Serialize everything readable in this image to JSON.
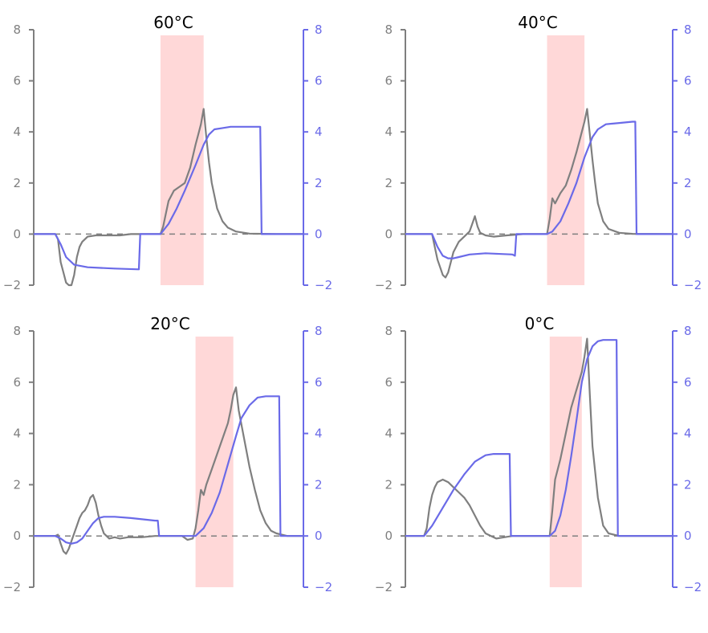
{
  "chart_data": [
    {
      "type": "line",
      "title": "60°C",
      "ylim": [
        -2,
        8
      ],
      "yticks": [
        -2,
        0,
        2,
        4,
        6,
        8
      ],
      "highlight": [
        0.47,
        0.63
      ],
      "colors": {
        "left": "#7f7f7f",
        "right": "#6a6ae8",
        "highlight": "#ffd8d8",
        "zero": "#7f7f7f"
      },
      "series": [
        {
          "axis": "left",
          "x": [
            0.0,
            0.08,
            0.09,
            0.1,
            0.11,
            0.12,
            0.13,
            0.14,
            0.15,
            0.16,
            0.17,
            0.18,
            0.2,
            0.23,
            0.27,
            0.32,
            0.36,
            0.38,
            0.47,
            0.48,
            0.49,
            0.5,
            0.52,
            0.54,
            0.56,
            0.58,
            0.6,
            0.61,
            0.62,
            0.63,
            0.64,
            0.65,
            0.66,
            0.68,
            0.7,
            0.72,
            0.75,
            0.8,
            0.9,
            1.0
          ],
          "values": [
            0,
            0,
            -0.2,
            -1.1,
            -1.5,
            -1.9,
            -2.3,
            -2.1,
            -1.6,
            -0.9,
            -0.5,
            -0.3,
            -0.1,
            -0.05,
            -0.05,
            -0.05,
            0,
            0,
            0,
            0.3,
            0.8,
            1.3,
            1.7,
            1.85,
            2.0,
            2.6,
            3.5,
            3.9,
            4.3,
            4.9,
            3.8,
            2.8,
            2.0,
            1.0,
            0.5,
            0.25,
            0.1,
            0.02,
            0,
            0
          ]
        },
        {
          "axis": "right",
          "x": [
            0.0,
            0.08,
            0.1,
            0.12,
            0.15,
            0.2,
            0.3,
            0.39,
            0.395,
            0.47,
            0.5,
            0.53,
            0.56,
            0.6,
            0.63,
            0.65,
            0.67,
            0.7,
            0.73,
            0.8,
            0.84,
            0.845,
            1.0
          ],
          "values": [
            0,
            0,
            -0.4,
            -0.9,
            -1.2,
            -1.3,
            -1.35,
            -1.38,
            0,
            0,
            0.4,
            1.0,
            1.7,
            2.7,
            3.5,
            3.9,
            4.1,
            4.15,
            4.2,
            4.2,
            4.2,
            0,
            0
          ]
        }
      ]
    },
    {
      "type": "line",
      "title": "40°C",
      "ylim": [
        -2,
        8
      ],
      "yticks": [
        -2,
        0,
        2,
        4,
        6,
        8
      ],
      "highlight": [
        0.53,
        0.67
      ],
      "colors": {
        "left": "#7f7f7f",
        "right": "#6a6ae8",
        "highlight": "#ffd8d8",
        "zero": "#7f7f7f"
      },
      "series": [
        {
          "axis": "left",
          "x": [
            0.0,
            0.09,
            0.1,
            0.11,
            0.12,
            0.13,
            0.14,
            0.15,
            0.16,
            0.17,
            0.18,
            0.2,
            0.22,
            0.24,
            0.25,
            0.26,
            0.27,
            0.28,
            0.3,
            0.33,
            0.38,
            0.44,
            0.53,
            0.54,
            0.55,
            0.56,
            0.58,
            0.6,
            0.62,
            0.64,
            0.66,
            0.67,
            0.68,
            0.69,
            0.7,
            0.71,
            0.72,
            0.74,
            0.76,
            0.8,
            0.85,
            1.0
          ],
          "values": [
            0,
            0,
            0,
            -0.5,
            -1.0,
            -1.3,
            -1.6,
            -1.7,
            -1.5,
            -1.1,
            -0.7,
            -0.3,
            -0.1,
            0.1,
            0.4,
            0.7,
            0.3,
            0.05,
            -0.05,
            -0.1,
            -0.05,
            0,
            0,
            0.6,
            1.4,
            1.2,
            1.6,
            1.9,
            2.5,
            3.2,
            4.0,
            4.4,
            4.9,
            3.9,
            2.9,
            2.0,
            1.2,
            0.5,
            0.2,
            0.05,
            0.01,
            0
          ]
        },
        {
          "axis": "right",
          "x": [
            0.0,
            0.09,
            0.1,
            0.12,
            0.14,
            0.16,
            0.18,
            0.2,
            0.24,
            0.3,
            0.4,
            0.41,
            0.415,
            0.53,
            0.55,
            0.58,
            0.61,
            0.64,
            0.67,
            0.7,
            0.72,
            0.75,
            0.8,
            0.85,
            0.86,
            0.865,
            1.0
          ],
          "values": [
            0,
            0,
            0,
            -0.5,
            -0.85,
            -0.95,
            -0.95,
            -0.9,
            -0.8,
            -0.75,
            -0.8,
            -0.85,
            0,
            0,
            0.1,
            0.5,
            1.2,
            2.0,
            3.0,
            3.8,
            4.1,
            4.3,
            4.35,
            4.4,
            4.4,
            0,
            0
          ]
        }
      ]
    },
    {
      "type": "line",
      "title": "20°C",
      "ylim": [
        -2,
        8
      ],
      "yticks": [
        -2,
        0,
        2,
        4,
        6,
        8
      ],
      "highlight": [
        0.6,
        0.74
      ],
      "colors": {
        "left": "#7f7f7f",
        "right": "#6a6ae8",
        "highlight": "#ffd8d8",
        "zero": "#7f7f7f"
      },
      "series": [
        {
          "axis": "left",
          "x": [
            0.0,
            0.08,
            0.09,
            0.1,
            0.11,
            0.12,
            0.13,
            0.14,
            0.15,
            0.16,
            0.17,
            0.18,
            0.19,
            0.2,
            0.21,
            0.22,
            0.23,
            0.24,
            0.25,
            0.26,
            0.27,
            0.28,
            0.3,
            0.32,
            0.35,
            0.4,
            0.45,
            0.5,
            0.55,
            0.57,
            0.59,
            0.6,
            0.61,
            0.62,
            0.63,
            0.64,
            0.66,
            0.68,
            0.7,
            0.72,
            0.73,
            0.74,
            0.75,
            0.76,
            0.78,
            0.8,
            0.82,
            0.84,
            0.86,
            0.88,
            0.9,
            0.92,
            0.94,
            0.96,
            1.0
          ],
          "values": [
            0,
            0,
            0.05,
            -0.3,
            -0.6,
            -0.7,
            -0.5,
            -0.2,
            0.1,
            0.4,
            0.7,
            0.9,
            1.0,
            1.2,
            1.5,
            1.6,
            1.3,
            0.8,
            0.4,
            0.1,
            0,
            -0.1,
            -0.05,
            -0.1,
            -0.05,
            -0.05,
            0,
            0,
            0,
            -0.15,
            -0.1,
            0.3,
            1.0,
            1.8,
            1.6,
            2.0,
            2.6,
            3.2,
            3.8,
            4.4,
            4.9,
            5.5,
            5.8,
            4.9,
            3.8,
            2.7,
            1.8,
            1.0,
            0.5,
            0.2,
            0.1,
            0.05,
            0,
            0,
            0
          ]
        },
        {
          "axis": "right",
          "x": [
            0.0,
            0.08,
            0.1,
            0.12,
            0.14,
            0.16,
            0.18,
            0.2,
            0.22,
            0.24,
            0.26,
            0.3,
            0.36,
            0.45,
            0.46,
            0.465,
            0.6,
            0.63,
            0.66,
            0.69,
            0.72,
            0.75,
            0.77,
            0.8,
            0.83,
            0.86,
            0.9,
            0.91,
            0.915,
            1.0
          ],
          "values": [
            0,
            0,
            -0.1,
            -0.25,
            -0.3,
            -0.25,
            -0.1,
            0.2,
            0.5,
            0.7,
            0.75,
            0.75,
            0.7,
            0.6,
            0.6,
            0,
            0,
            0.3,
            0.9,
            1.7,
            2.8,
            3.9,
            4.6,
            5.1,
            5.4,
            5.45,
            5.45,
            5.45,
            0,
            0
          ]
        }
      ]
    },
    {
      "type": "line",
      "title": "0°C",
      "ylim": [
        -2,
        8
      ],
      "yticks": [
        -2,
        0,
        2,
        4,
        6,
        8
      ],
      "highlight": [
        0.54,
        0.66
      ],
      "colors": {
        "left": "#7f7f7f",
        "right": "#6a6ae8",
        "highlight": "#ffd8d8",
        "zero": "#7f7f7f"
      },
      "series": [
        {
          "axis": "left",
          "x": [
            0.0,
            0.07,
            0.08,
            0.09,
            0.1,
            0.11,
            0.12,
            0.14,
            0.16,
            0.18,
            0.2,
            0.22,
            0.24,
            0.26,
            0.28,
            0.3,
            0.32,
            0.34,
            0.37,
            0.4,
            0.44,
            0.54,
            0.55,
            0.56,
            0.58,
            0.6,
            0.62,
            0.64,
            0.66,
            0.67,
            0.68,
            0.69,
            0.7,
            0.72,
            0.74,
            0.76,
            0.8,
            0.85,
            1.0
          ],
          "values": [
            0,
            0,
            0.3,
            1.1,
            1.6,
            1.9,
            2.1,
            2.2,
            2.1,
            1.9,
            1.7,
            1.5,
            1.2,
            0.8,
            0.4,
            0.1,
            0,
            -0.1,
            -0.05,
            0,
            0,
            0,
            1.0,
            2.2,
            3.0,
            4.0,
            5.0,
            5.7,
            6.4,
            7.0,
            7.7,
            5.5,
            3.5,
            1.5,
            0.4,
            0.1,
            0,
            0,
            0
          ]
        },
        {
          "axis": "right",
          "x": [
            0.0,
            0.07,
            0.1,
            0.14,
            0.18,
            0.22,
            0.26,
            0.3,
            0.33,
            0.36,
            0.38,
            0.39,
            0.395,
            0.54,
            0.56,
            0.58,
            0.6,
            0.62,
            0.64,
            0.66,
            0.68,
            0.7,
            0.72,
            0.74,
            0.77,
            0.79,
            0.795,
            1.0
          ],
          "values": [
            0,
            0,
            0.4,
            1.1,
            1.8,
            2.4,
            2.9,
            3.15,
            3.2,
            3.2,
            3.2,
            3.2,
            0,
            0,
            0.2,
            0.8,
            1.8,
            3.1,
            4.5,
            6.0,
            6.9,
            7.4,
            7.6,
            7.65,
            7.65,
            7.65,
            0,
            0
          ]
        }
      ]
    }
  ]
}
